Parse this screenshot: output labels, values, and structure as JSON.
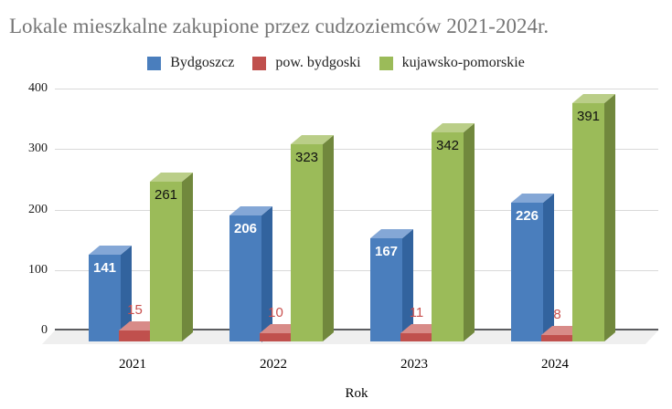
{
  "title": "Lokale mieszkalne zakupione przez cudzoziemców 2021-2024r.",
  "chart_data": {
    "type": "bar",
    "style": "3d-column",
    "title": "Lokale mieszkalne zakupione przez cudzoziemców 2021-2024r.",
    "xlabel": "Rok",
    "ylabel": "",
    "categories": [
      "2021",
      "2022",
      "2023",
      "2024"
    ],
    "series": [
      {
        "name": "Bydgoszcz",
        "values": [
          141,
          206,
          167,
          226
        ],
        "color": "#4a7ebd",
        "faces": {
          "front": "#4a7ebd",
          "top": "#84a7d6",
          "side": "#32639e"
        },
        "label_color": "#ffffff",
        "label_inside": true
      },
      {
        "name": "pow. bydgoski",
        "values": [
          15,
          10,
          11,
          8
        ],
        "color": "#c0504d",
        "faces": {
          "front": "#c0504d",
          "top": "#d88b88",
          "side": "#93403e"
        },
        "label_color": "#c9504e",
        "label_inside": false
      },
      {
        "name": "kujawsko-pomorskie",
        "values": [
          261,
          323,
          342,
          391
        ],
        "color": "#9bbb59",
        "faces": {
          "front": "#9bbb59",
          "top": "#bace88",
          "side": "#71883d"
        },
        "label_color": "#111111",
        "label_inside": true
      }
    ],
    "ylim": [
      0,
      400
    ],
    "yticks": [
      0,
      100,
      200,
      300,
      400
    ],
    "grid": true,
    "legend_position": "top",
    "background": "#ffffff",
    "grid_color": "#d9d9d9",
    "axis_color": "#5c5d60",
    "title_color": "#757575"
  }
}
